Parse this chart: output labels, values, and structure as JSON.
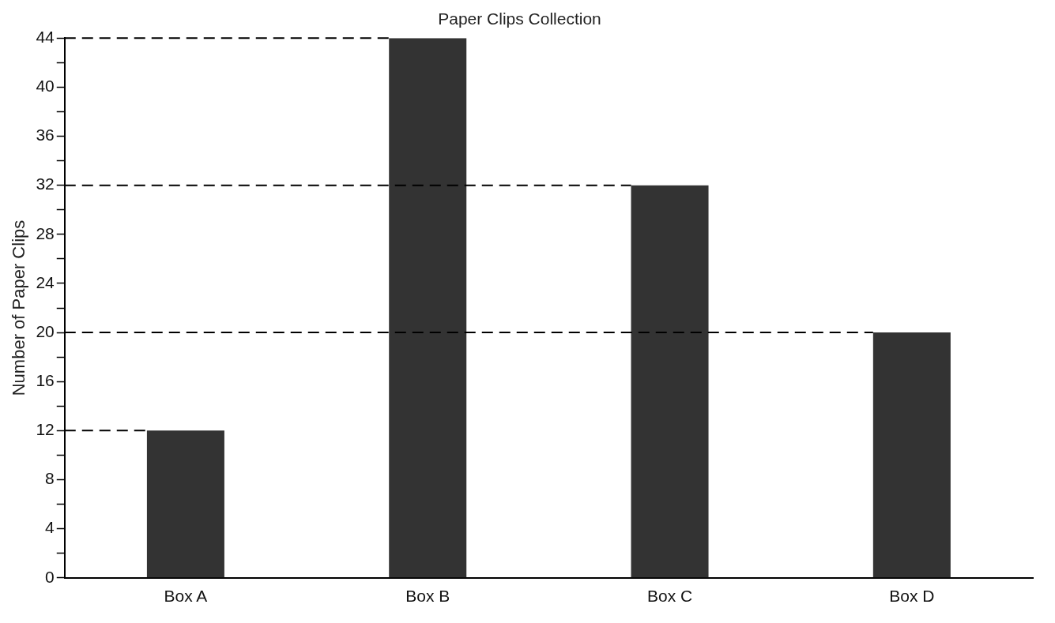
{
  "chart_data": {
    "type": "bar",
    "title": "Paper Clips Collection",
    "ylabel": "Number of Paper Clips",
    "categories": [
      "Box A",
      "Box B",
      "Box C",
      "Box D"
    ],
    "values": [
      12,
      44,
      32,
      20
    ],
    "color": "#333333",
    "ylim": [
      0,
      44
    ],
    "yticks": [
      0,
      {
        "value": 2,
        "label": null
      },
      4,
      {
        "value": 6,
        "label": null
      },
      8,
      {
        "value": 10,
        "label": null
      },
      12,
      {
        "value": 14,
        "label": null
      },
      16,
      {
        "value": 18,
        "label": null
      },
      20,
      {
        "value": 22,
        "label": null
      },
      24,
      {
        "value": 26,
        "label": null
      },
      28,
      {
        "value": 30,
        "label": null
      },
      32,
      {
        "value": 34,
        "label": null
      },
      36,
      {
        "value": 38,
        "label": null
      },
      40,
      {
        "value": 42,
        "label": null
      },
      44
    ],
    "grid": false,
    "ref_lines": [
      {
        "axis": "y",
        "value": 44,
        "color": "#000000",
        "line_style": "dashed"
      },
      {
        "axis": "y",
        "value": 32,
        "color": "#000000",
        "line_style": "dashed"
      },
      {
        "axis": "y",
        "value": 20,
        "color": "#000000",
        "line_style": "dashed"
      },
      {
        "axis": "y",
        "value": 12,
        "color": "#000000",
        "line_style": "dashed"
      }
    ]
  }
}
